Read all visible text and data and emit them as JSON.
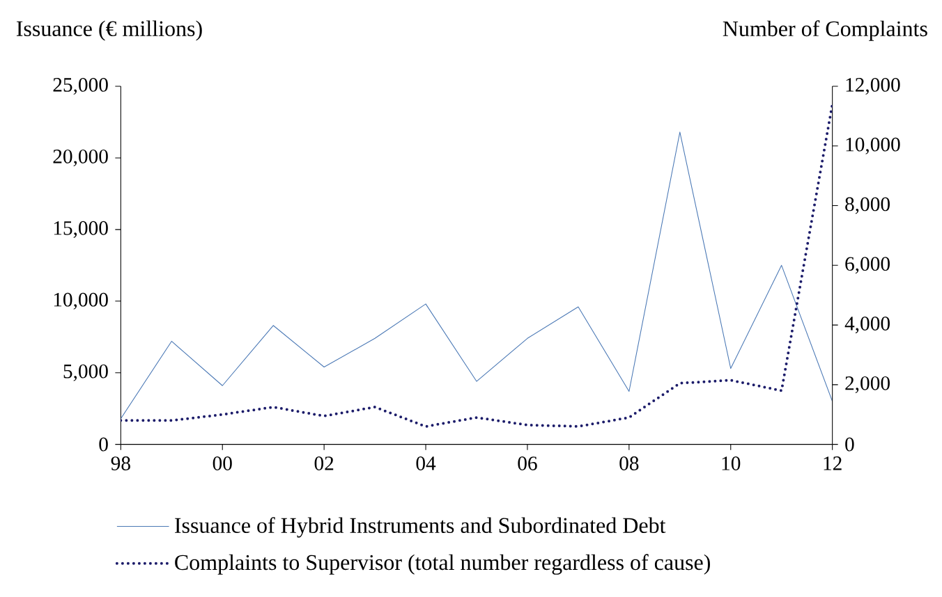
{
  "chart_data": {
    "type": "line",
    "ylabel": "Issuance (€ millions)",
    "y2label": "Number of Complaints",
    "x": [
      1998,
      1999,
      2000,
      2001,
      2002,
      2003,
      2004,
      2005,
      2006,
      2007,
      2008,
      2009,
      2010,
      2011,
      2012
    ],
    "xlim": [
      1998,
      2012
    ],
    "xticks": [
      {
        "value": 1998,
        "label": "98"
      },
      {
        "value": 2000,
        "label": "00"
      },
      {
        "value": 2002,
        "label": "02"
      },
      {
        "value": 2004,
        "label": "04"
      },
      {
        "value": 2006,
        "label": "06"
      },
      {
        "value": 2008,
        "label": "08"
      },
      {
        "value": 2010,
        "label": "10"
      },
      {
        "value": 2012,
        "label": "12"
      }
    ],
    "ylim": [
      0,
      25000
    ],
    "yticks": [
      0,
      {
        "value": 5000,
        "label": "5,000"
      },
      {
        "value": 10000,
        "label": "10,000"
      },
      {
        "value": 15000,
        "label": "15,000"
      },
      {
        "value": 20000,
        "label": "20,000"
      },
      {
        "value": 25000,
        "label": "25,000"
      }
    ],
    "y2lim": [
      0,
      12000
    ],
    "y2ticks": [
      0,
      {
        "value": 2000,
        "label": "2,000"
      },
      {
        "value": 4000,
        "label": "4,000"
      },
      {
        "value": 6000,
        "label": "6,000"
      },
      {
        "value": 8000,
        "label": "8,000"
      },
      {
        "value": 10000,
        "label": "10,000"
      },
      {
        "value": 12000,
        "label": "12,000"
      }
    ],
    "legend": "bottom",
    "grid": false,
    "series": [
      {
        "name": "Issuance of Hybrid Instruments and Subordinated Debt",
        "color": "#4a78b5",
        "line_style": "solid",
        "values": [
          1800,
          7200,
          4100,
          8300,
          5400,
          7400,
          9800,
          4400,
          7400,
          9600,
          3700,
          21800,
          5300,
          12500,
          3000
        ]
      },
      {
        "name": "Complaints to Supervisor (total number regardless of cause)",
        "color": "#1c1c6a",
        "line_style": "dotted",
        "axis": "y2",
        "values": [
          800,
          800,
          1000,
          1250,
          950,
          1250,
          600,
          900,
          650,
          600,
          900,
          2050,
          2150,
          1800,
          11400
        ]
      }
    ]
  }
}
